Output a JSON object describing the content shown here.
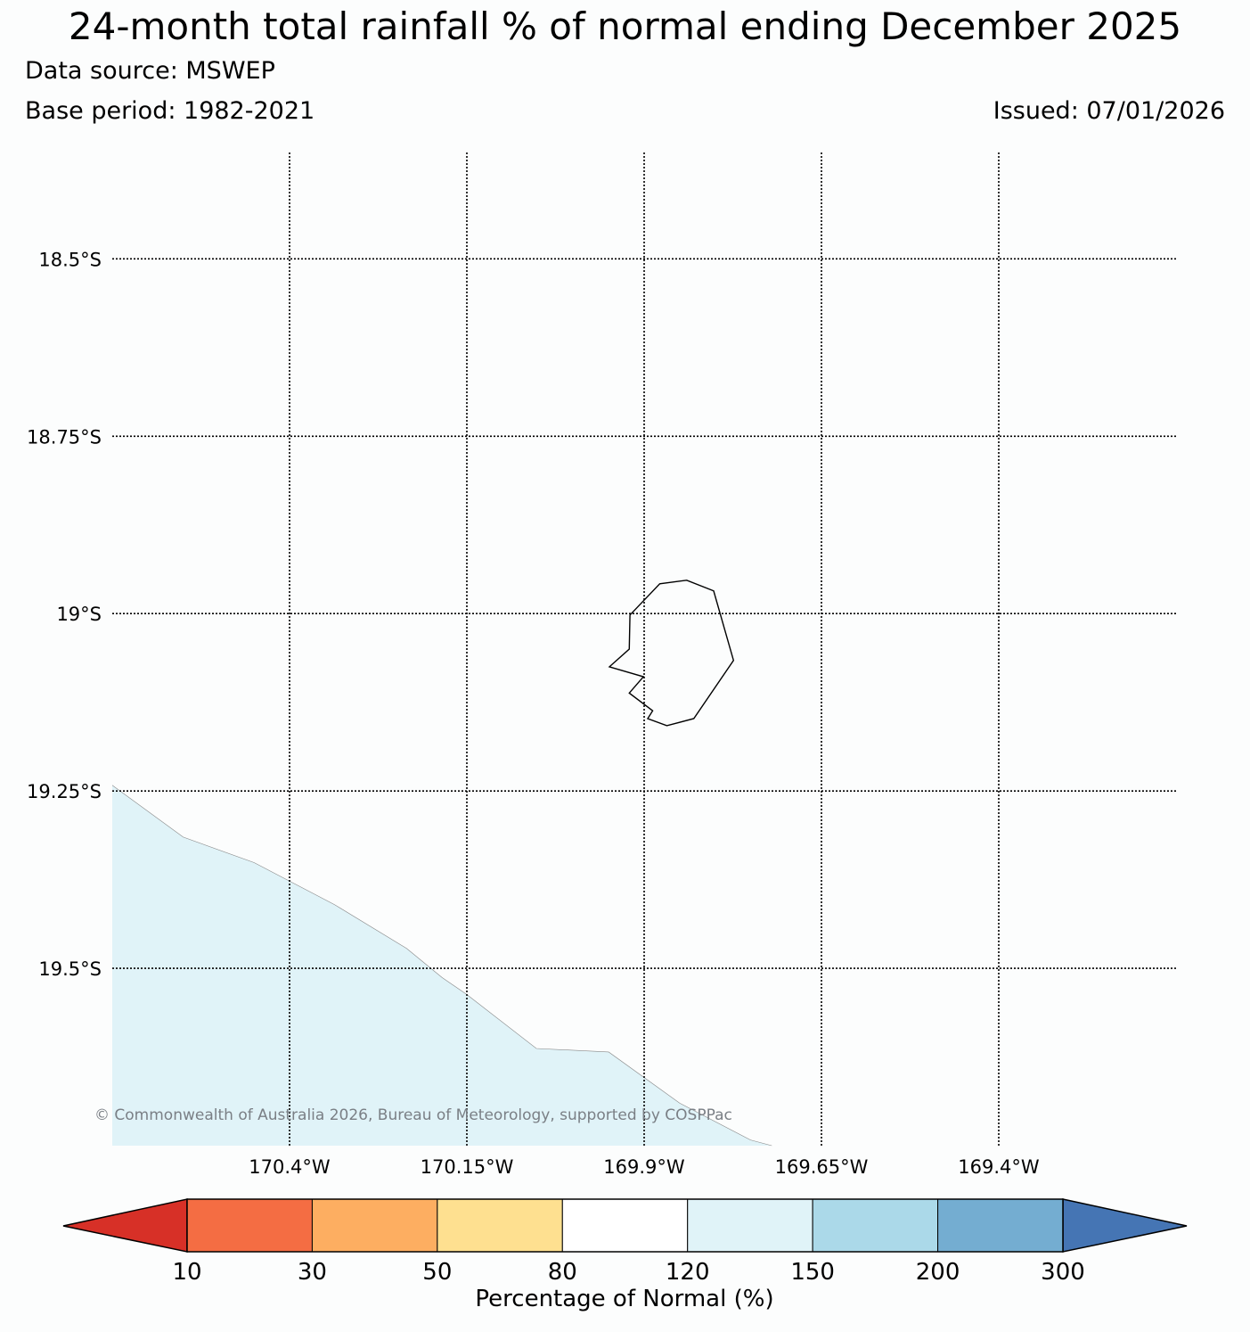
{
  "title": "24-month total rainfall % of normal ending December 2025",
  "data_source": "Data source: MSWEP",
  "base_period": "Base period: 1982-2021",
  "issued": "Issued: 07/01/2026",
  "copyright": "© Commonwealth of Australia 2026, Bureau of Meteorology, supported by COSPPac",
  "map": {
    "extent": {
      "lon_min": -170.65,
      "lon_max": -169.15,
      "lat_max": -18.35,
      "lat_min": -19.75
    },
    "longitude_lines": [
      {
        "value": -170.4,
        "label": "170.4°W"
      },
      {
        "value": -170.15,
        "label": "170.15°W"
      },
      {
        "value": -169.9,
        "label": "169.9°W"
      },
      {
        "value": -169.65,
        "label": "169.65°W"
      },
      {
        "value": -169.4,
        "label": "169.4°W"
      }
    ],
    "latitude_lines": [
      {
        "value": -18.5,
        "label": "18.5°S"
      },
      {
        "value": -18.75,
        "label": "18.75°S"
      },
      {
        "value": -19.0,
        "label": "19°S"
      },
      {
        "value": -19.25,
        "label": "19.25°S"
      },
      {
        "value": -19.5,
        "label": "19.5°S"
      }
    ],
    "gridlines": "dotted",
    "island_outline": {
      "color": "#000000",
      "points": [
        [
          -169.92,
          -19.002
        ],
        [
          -169.878,
          -18.958
        ],
        [
          -169.84,
          -18.953
        ],
        [
          -169.802,
          -18.968
        ],
        [
          -169.774,
          -19.066
        ],
        [
          -169.83,
          -19.148
        ],
        [
          -169.868,
          -19.158
        ],
        [
          -169.895,
          -19.148
        ],
        [
          -169.888,
          -19.137
        ],
        [
          -169.921,
          -19.112
        ],
        [
          -169.901,
          -19.089
        ],
        [
          -169.949,
          -19.075
        ],
        [
          -169.921,
          -19.05
        ],
        [
          -169.92,
          -19.002
        ]
      ]
    },
    "shaded_region": {
      "category": "120-150",
      "color": "#e0f3f8",
      "edge_color": "#888888",
      "boundary": [
        [
          -170.65,
          -19.242
        ],
        [
          -170.55,
          -19.315
        ],
        [
          -170.45,
          -19.351
        ],
        [
          -170.337,
          -19.41
        ],
        [
          -170.235,
          -19.472
        ],
        [
          -170.185,
          -19.513
        ],
        [
          -170.15,
          -19.537
        ],
        [
          -170.052,
          -19.613
        ],
        [
          -169.95,
          -19.618
        ],
        [
          -169.85,
          -19.69
        ],
        [
          -169.75,
          -19.742
        ],
        [
          -169.72,
          -19.75
        ]
      ]
    }
  },
  "colorbar": {
    "title": "Percentage of Normal (%)",
    "extend": "both",
    "ticks": [
      "10",
      "30",
      "50",
      "80",
      "120",
      "150",
      "200",
      "300"
    ],
    "under_color": "#d73027",
    "over_color": "#4575b4",
    "bins": [
      {
        "range": "10-30",
        "color": "#f46d43"
      },
      {
        "range": "30-50",
        "color": "#fdae61"
      },
      {
        "range": "50-80",
        "color": "#fee090"
      },
      {
        "range": "80-120",
        "color": "#ffffff"
      },
      {
        "range": "120-150",
        "color": "#e0f3f8"
      },
      {
        "range": "150-200",
        "color": "#abd9e9"
      },
      {
        "range": "200-300",
        "color": "#74add1"
      }
    ]
  }
}
